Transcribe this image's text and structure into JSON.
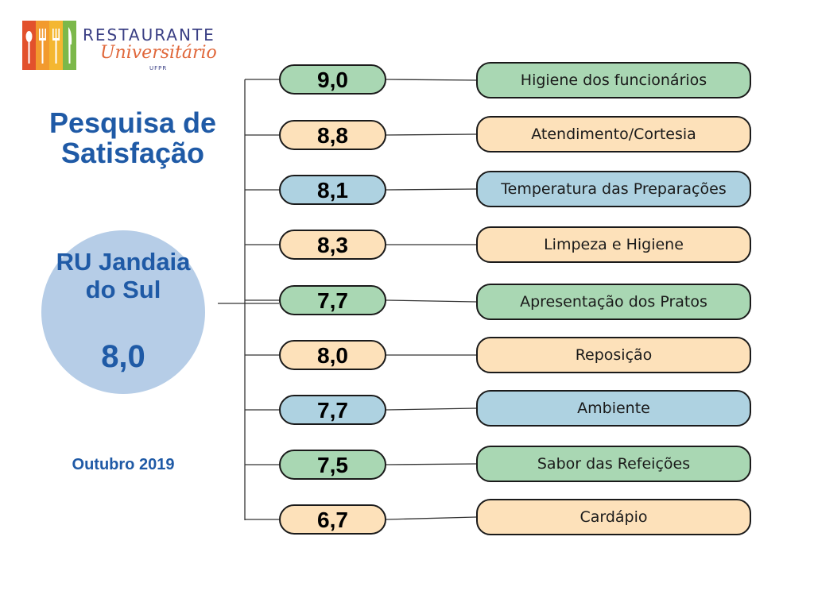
{
  "logo": {
    "word1": "RESTAURANTE",
    "word2": "Universitário",
    "word3": "UFPR",
    "colors": [
      "#e2512c",
      "#f29a2e",
      "#f4b731",
      "#7cb84a"
    ]
  },
  "title": "Pesquisa de Satisfação",
  "unit": {
    "name": "RU Jandaia do Sul",
    "score": "8,0"
  },
  "date": "Outubro 2019",
  "colors": {
    "green": "#a9d7b3",
    "peach": "#fde1ba",
    "blue": "#aed2e1",
    "circle": "#b6cde7",
    "title": "#1f5aa6"
  },
  "items": [
    {
      "score": "9,0",
      "label": "Higiene dos funcionários",
      "color": "green"
    },
    {
      "score": "8,8",
      "label": "Atendimento/Cortesia",
      "color": "peach"
    },
    {
      "score": "8,1",
      "label": "Temperatura das Preparações",
      "color": "blue"
    },
    {
      "score": "8,3",
      "label": "Limpeza e Higiene",
      "color": "peach"
    },
    {
      "score": "7,7",
      "label": "Apresentação dos Pratos",
      "color": "green"
    },
    {
      "score": "8,0",
      "label": "Reposição",
      "color": "peach"
    },
    {
      "score": "7,7",
      "label": "Ambiente",
      "color": "blue"
    },
    {
      "score": "7,5",
      "label": "Sabor das Refeições",
      "color": "green"
    },
    {
      "score": "6,7",
      "label": "Cardápio",
      "color": "peach"
    }
  ]
}
